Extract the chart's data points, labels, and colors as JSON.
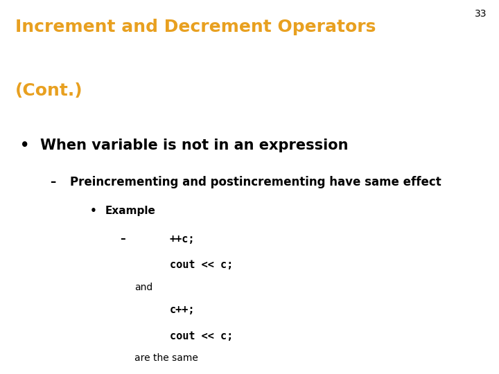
{
  "title_line1": "Increment and Decrement Operators",
  "title_line2": "(Cont.)",
  "title_color": "#E8A020",
  "slide_number": "33",
  "background_color": "#FFFFFF",
  "text_color": "#000000",
  "bullet1": "When variable is not in an expression",
  "sub_bullet1": "Preincrementing and postincrementing have same effect",
  "sub_sub_bullet1": "Example",
  "code_line1": "++c;",
  "code_line2": "cout << c;",
  "code_and": "and",
  "code_line3": "c++;",
  "code_line4": "cout << c;",
  "code_footer": "are the same",
  "title_fontsize": 18,
  "slide_num_fontsize": 10,
  "bullet_fontsize": 15,
  "sub_bullet_fontsize": 12,
  "sub_sub_bullet_fontsize": 11,
  "code_fontsize": 11,
  "small_text_fontsize": 10
}
